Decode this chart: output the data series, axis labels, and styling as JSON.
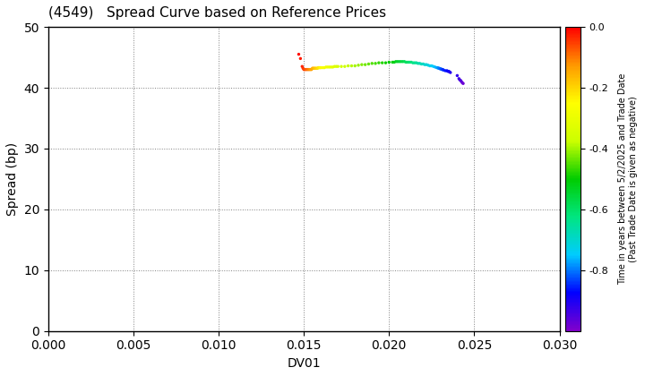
{
  "title": "(4549)   Spread Curve based on Reference Prices",
  "xlabel": "DV01",
  "ylabel": "Spread (bp)",
  "colorbar_label": "Time in years between 5/2/2025 and Trade Date\n(Past Trade Date is given as negative)",
  "xlim": [
    0.0,
    0.03
  ],
  "ylim": [
    0,
    50
  ],
  "xticks": [
    0.0,
    0.005,
    0.01,
    0.015,
    0.02,
    0.025,
    0.03
  ],
  "yticks": [
    0,
    10,
    20,
    30,
    40,
    50
  ],
  "clim": [
    -1.0,
    0.0
  ],
  "background_color": "#ffffff",
  "scatter_data": {
    "dv01": [
      0.0147,
      0.0148,
      0.0149,
      0.01495,
      0.015,
      0.01505,
      0.0151,
      0.01515,
      0.0152,
      0.01525,
      0.0153,
      0.01535,
      0.0154,
      0.01545,
      0.0155,
      0.01555,
      0.0156,
      0.01565,
      0.0157,
      0.01575,
      0.0158,
      0.01585,
      0.0159,
      0.01595,
      0.016,
      0.0161,
      0.0162,
      0.0163,
      0.0164,
      0.0165,
      0.0166,
      0.0167,
      0.0168,
      0.0169,
      0.017,
      0.0172,
      0.0174,
      0.0176,
      0.0178,
      0.018,
      0.0182,
      0.0184,
      0.0186,
      0.0188,
      0.019,
      0.0192,
      0.0194,
      0.0196,
      0.0198,
      0.02,
      0.0202,
      0.0203,
      0.0204,
      0.0205,
      0.0206,
      0.0207,
      0.0208,
      0.0209,
      0.021,
      0.0211,
      0.0212,
      0.0213,
      0.0214,
      0.0215,
      0.0216,
      0.0217,
      0.0218,
      0.0219,
      0.022,
      0.0221,
      0.0222,
      0.0223,
      0.0224,
      0.0225,
      0.0226,
      0.0227,
      0.0228,
      0.02285,
      0.0229,
      0.02295,
      0.023,
      0.02305,
      0.0231,
      0.02315,
      0.0232,
      0.0233,
      0.0234,
      0.02345,
      0.0235,
      0.02355,
      0.0236,
      0.024,
      0.0241,
      0.02415,
      0.0242,
      0.02425,
      0.0243,
      0.02435
    ],
    "spread": [
      45.5,
      44.8,
      43.5,
      43.2,
      43.0,
      43.0,
      43.0,
      43.0,
      43.0,
      43.0,
      43.0,
      43.0,
      43.0,
      43.0,
      43.2,
      43.2,
      43.2,
      43.2,
      43.2,
      43.2,
      43.2,
      43.3,
      43.3,
      43.3,
      43.3,
      43.3,
      43.3,
      43.4,
      43.4,
      43.4,
      43.4,
      43.4,
      43.5,
      43.5,
      43.5,
      43.5,
      43.5,
      43.6,
      43.6,
      43.6,
      43.7,
      43.8,
      43.8,
      43.9,
      44.0,
      44.0,
      44.1,
      44.1,
      44.1,
      44.2,
      44.2,
      44.2,
      44.3,
      44.3,
      44.3,
      44.3,
      44.3,
      44.3,
      44.2,
      44.2,
      44.2,
      44.2,
      44.1,
      44.1,
      44.1,
      44.0,
      44.0,
      43.9,
      43.9,
      43.8,
      43.8,
      43.7,
      43.6,
      43.6,
      43.5,
      43.4,
      43.3,
      43.3,
      43.2,
      43.2,
      43.1,
      43.1,
      43.0,
      43.0,
      42.9,
      42.8,
      42.8,
      42.7,
      42.7,
      42.6,
      42.5,
      42.0,
      41.5,
      41.3,
      41.2,
      41.0,
      40.8,
      40.7
    ],
    "time": [
      -0.01,
      -0.02,
      -0.03,
      -0.04,
      -0.05,
      -0.06,
      -0.07,
      -0.08,
      -0.09,
      -0.1,
      -0.11,
      -0.12,
      -0.13,
      -0.14,
      -0.15,
      -0.16,
      -0.17,
      -0.18,
      -0.19,
      -0.2,
      -0.21,
      -0.22,
      -0.23,
      -0.24,
      -0.25,
      -0.26,
      -0.27,
      -0.28,
      -0.29,
      -0.3,
      -0.31,
      -0.32,
      -0.33,
      -0.34,
      -0.35,
      -0.36,
      -0.37,
      -0.38,
      -0.39,
      -0.4,
      -0.41,
      -0.42,
      -0.43,
      -0.44,
      -0.45,
      -0.46,
      -0.47,
      -0.48,
      -0.49,
      -0.5,
      -0.51,
      -0.52,
      -0.53,
      -0.54,
      -0.55,
      -0.56,
      -0.57,
      -0.58,
      -0.59,
      -0.6,
      -0.61,
      -0.62,
      -0.63,
      -0.64,
      -0.65,
      -0.66,
      -0.67,
      -0.68,
      -0.69,
      -0.7,
      -0.71,
      -0.72,
      -0.73,
      -0.74,
      -0.75,
      -0.76,
      -0.77,
      -0.78,
      -0.79,
      -0.8,
      -0.81,
      -0.82,
      -0.83,
      -0.84,
      -0.85,
      -0.86,
      -0.87,
      -0.88,
      -0.89,
      -0.9,
      -0.91,
      -0.92,
      -0.93,
      -0.94,
      -0.95,
      -0.96,
      -0.97,
      -0.98
    ]
  }
}
